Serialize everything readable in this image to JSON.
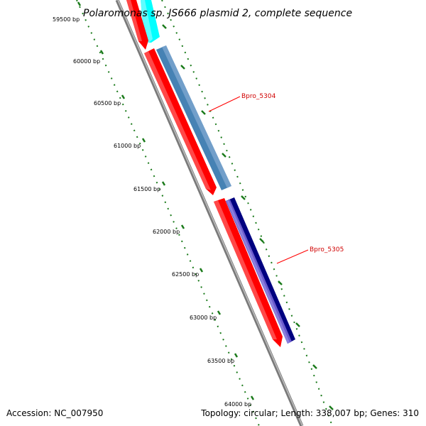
{
  "title": "Polaromonas sp. JS666 plasmid 2, complete sequence",
  "footer": {
    "accession": "Accession: NC_007950",
    "stats": "Topology: circular; Length: 338,007 bp; Genes: 310"
  },
  "ticks": [
    "59500 bp",
    "60000 bp",
    "60500 bp",
    "61000 bp",
    "61500 bp",
    "62000 bp",
    "62500 bp",
    "63000 bp",
    "63500 bp",
    "64000 bp"
  ],
  "genes": [
    {
      "label": "Bpro_5304"
    },
    {
      "label": "Bpro_5305"
    }
  ],
  "colors": {
    "backbone": "#7a7a7a",
    "cds": "#ff0000",
    "cyan_gene": "#00ffff",
    "steelblue_gene": "#4682b4",
    "slateblue_gene": "#6a5acd",
    "navy_gene": "#000080",
    "tick": "#1a7a1a",
    "label_line": "#ff0000"
  }
}
